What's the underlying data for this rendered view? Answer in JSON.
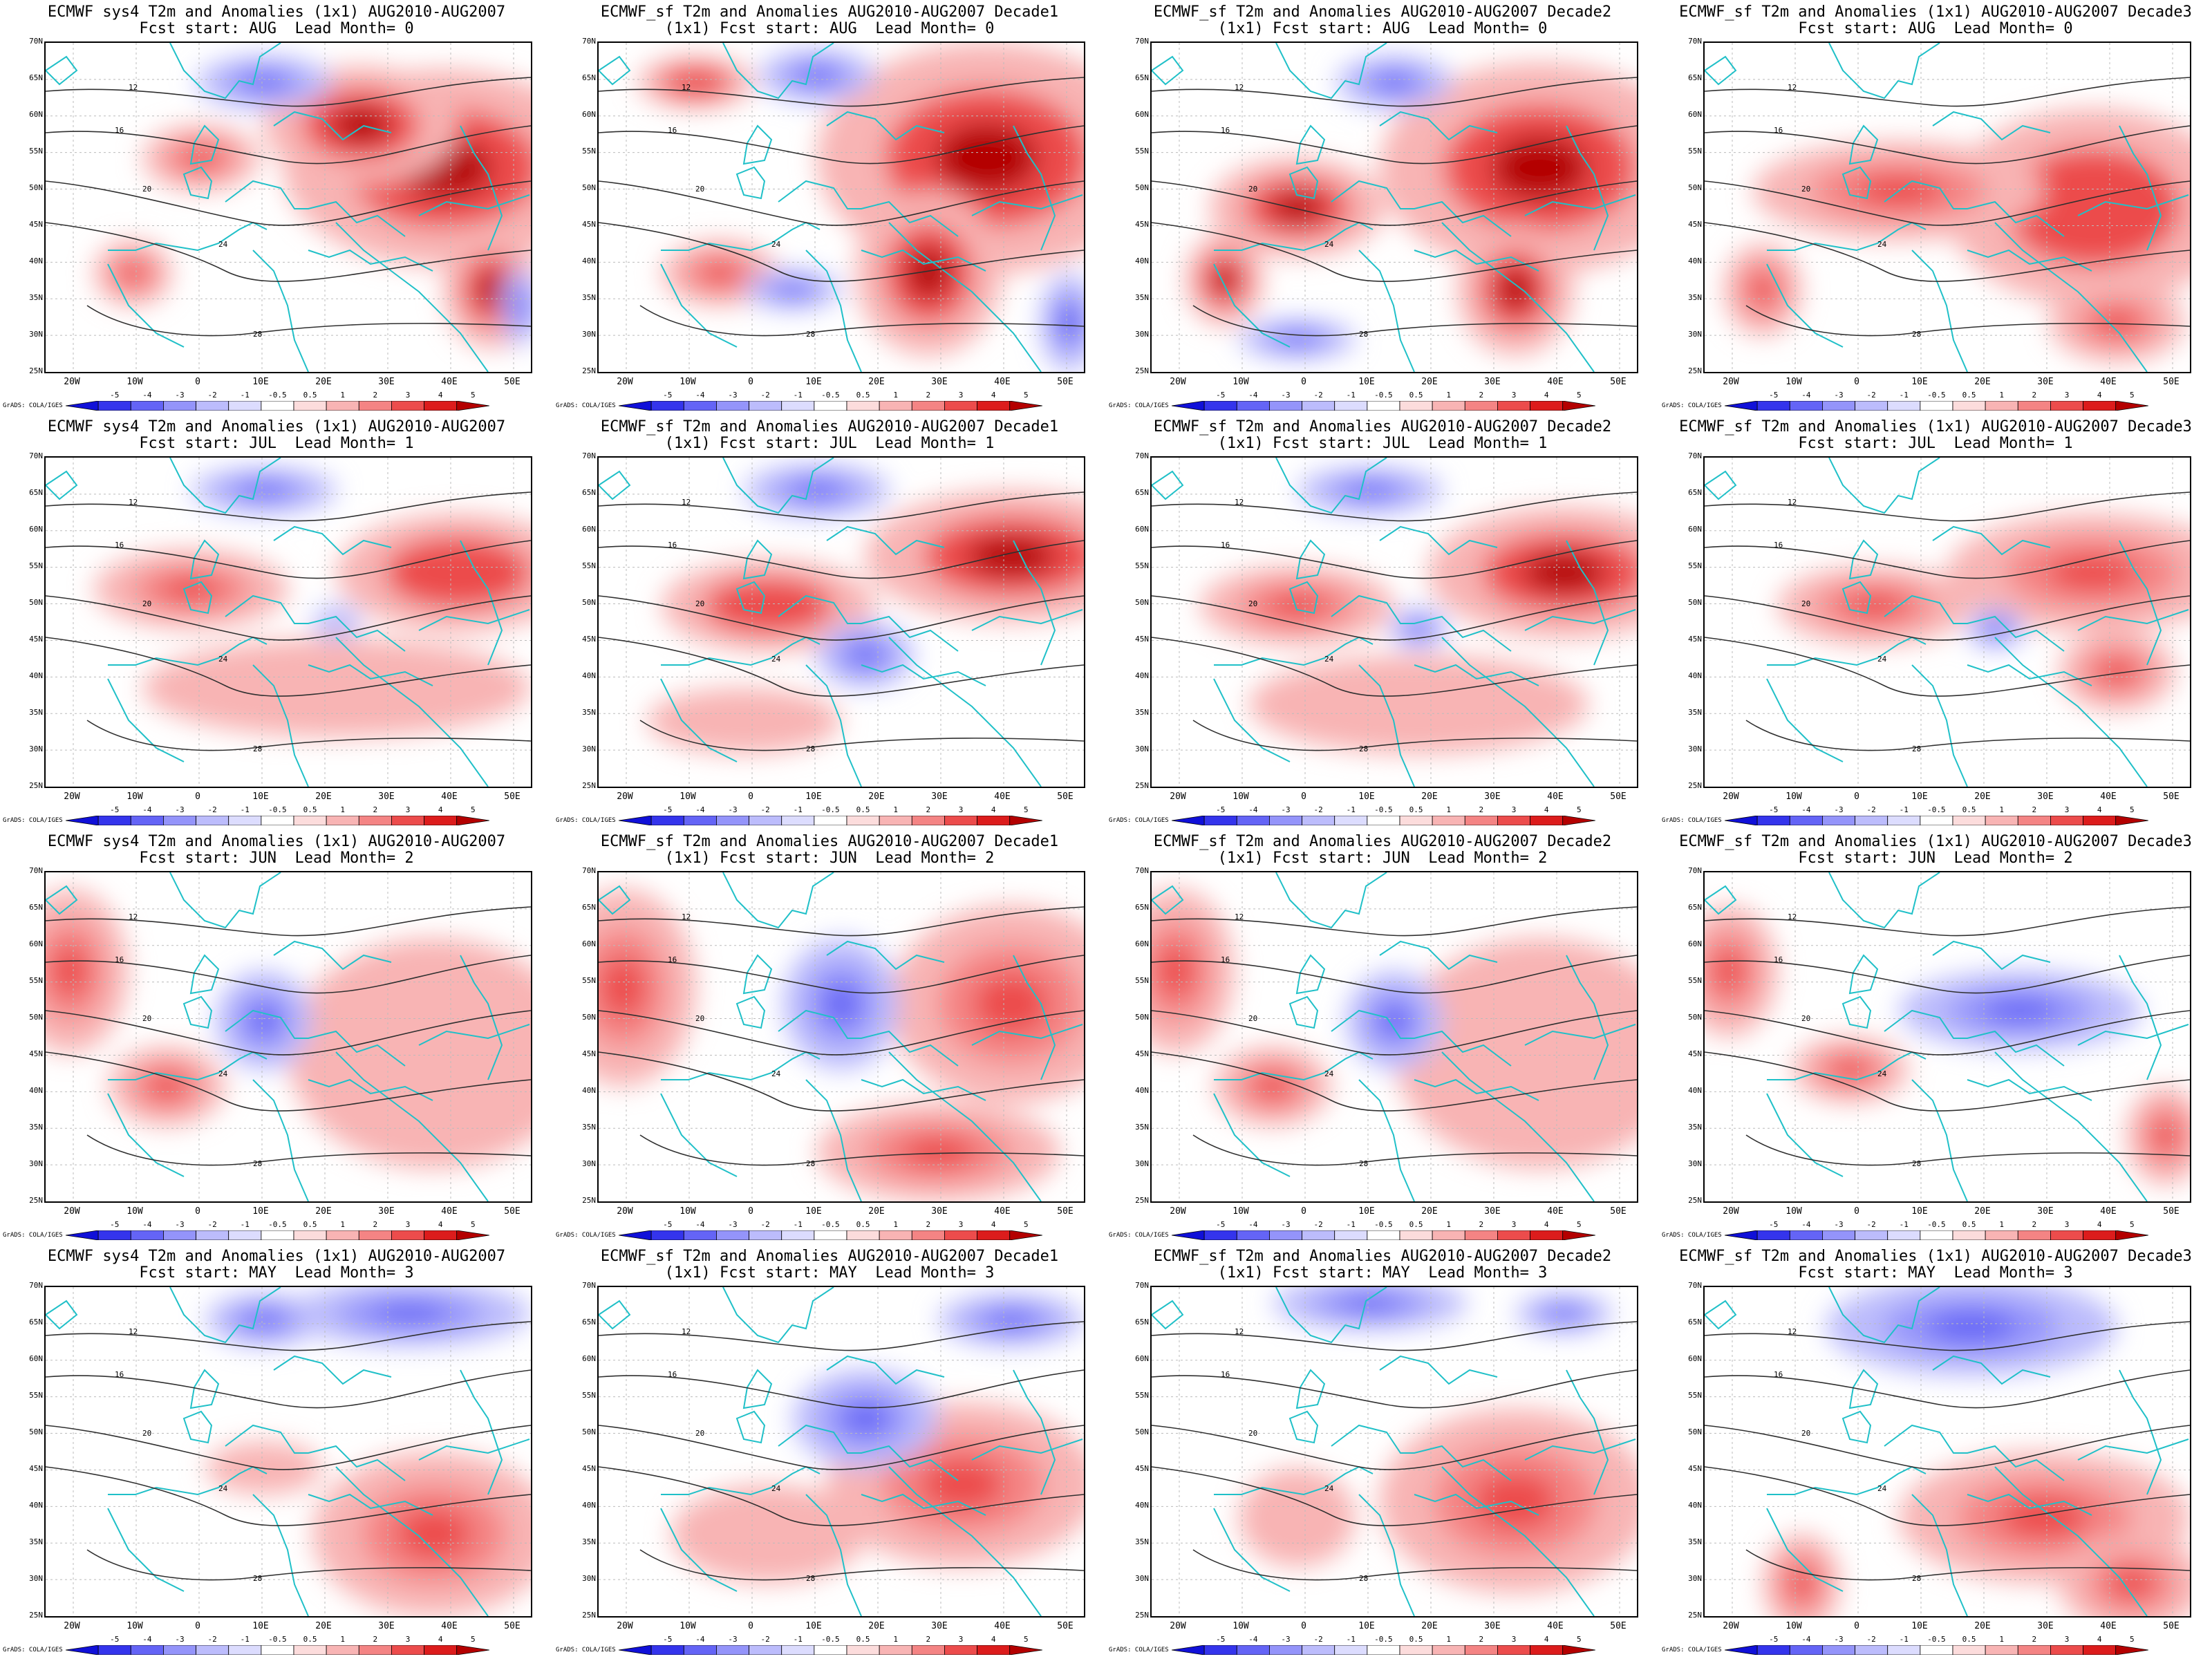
{
  "panels": [
    {
      "title1": "ECMWF sys4 T2m and Anomalies (1x1) AUG2010-AUG2007",
      "title2": "Fcst start: AUG  Lead Month= 0",
      "hot": [
        [
          0.82,
          0.38,
          0.33,
          0.3,
          1
        ],
        [
          0.65,
          0.25,
          0.2,
          0.18,
          0.9
        ],
        [
          0.32,
          0.35,
          0.12,
          0.1,
          0.6
        ],
        [
          0.92,
          0.75,
          0.1,
          0.18,
          0.9
        ],
        [
          0.18,
          0.7,
          0.08,
          0.1,
          0.5
        ]
      ],
      "cold": [
        [
          0.45,
          0.12,
          0.14,
          0.08,
          0.7
        ],
        [
          0.98,
          0.8,
          0.04,
          0.12,
          0.7
        ]
      ],
      "contours": [
        "12",
        "16",
        "20",
        "24",
        "28"
      ]
    },
    {
      "title1": "ECMWF_sf T2m and Anomalies AUG2010-AUG2007 Decade1",
      "title2": "(1x1) Fcst start: AUG  Lead Month= 0",
      "hot": [
        [
          0.8,
          0.35,
          0.35,
          0.35,
          1
        ],
        [
          0.68,
          0.7,
          0.15,
          0.25,
          1
        ],
        [
          0.2,
          0.12,
          0.12,
          0.08,
          0.8
        ],
        [
          0.25,
          0.7,
          0.12,
          0.1,
          0.6
        ]
      ],
      "cold": [
        [
          0.45,
          0.1,
          0.12,
          0.08,
          0.7
        ],
        [
          0.97,
          0.85,
          0.06,
          0.15,
          1
        ],
        [
          0.4,
          0.75,
          0.1,
          0.06,
          0.6
        ]
      ],
      "contours": [
        "12",
        "16",
        "20",
        "24",
        "28"
      ]
    },
    {
      "title1": "ECMWF_sf T2m and Anomalies AUG2010-AUG2007 Decade2",
      "title2": "(1x1) Fcst start: AUG  Lead Month= 0",
      "hot": [
        [
          0.8,
          0.38,
          0.33,
          0.32,
          1
        ],
        [
          0.3,
          0.5,
          0.18,
          0.15,
          0.9
        ],
        [
          0.75,
          0.75,
          0.12,
          0.2,
          1
        ],
        [
          0.15,
          0.72,
          0.08,
          0.14,
          0.9
        ]
      ],
      "cold": [
        [
          0.5,
          0.12,
          0.12,
          0.08,
          0.7
        ],
        [
          0.3,
          0.9,
          0.12,
          0.06,
          0.6
        ]
      ],
      "contours": [
        "12",
        "16",
        "20",
        "24",
        "28"
      ]
    },
    {
      "title1": "ECMWF_sf T2m and Anomalies (1x1) AUG2010-AUG2007 Decade3",
      "title2": "Fcst start: AUG  Lead Month= 0",
      "hot": [
        [
          0.8,
          0.5,
          0.3,
          0.3,
          0.8
        ],
        [
          0.4,
          0.45,
          0.3,
          0.15,
          0.6
        ],
        [
          0.85,
          0.85,
          0.14,
          0.12,
          0.7
        ],
        [
          0.12,
          0.75,
          0.08,
          0.14,
          0.6
        ]
      ],
      "cold": [],
      "contours": [
        "12",
        "16",
        "20",
        "24",
        "28"
      ]
    },
    {
      "title1": "ECMWF sys4 T2m and Anomalies (1x1) AUG2010-AUG2007",
      "title2": "Fcst start: JUL  Lead Month= 1",
      "hot": [
        [
          0.85,
          0.35,
          0.25,
          0.18,
          0.8
        ],
        [
          0.3,
          0.4,
          0.2,
          0.12,
          0.5
        ],
        [
          0.6,
          0.7,
          0.4,
          0.15,
          0.35
        ]
      ],
      "cold": [
        [
          0.45,
          0.1,
          0.15,
          0.07,
          0.5
        ],
        [
          0.6,
          0.5,
          0.05,
          0.05,
          0.4
        ]
      ],
      "contours": [
        "12",
        "16",
        "20",
        "24",
        "28"
      ]
    },
    {
      "title1": "ECMWF_sf T2m and Anomalies AUG2010-AUG2007 Decade1",
      "title2": "(1x1) Fcst start: JUL  Lead Month= 1",
      "hot": [
        [
          0.85,
          0.3,
          0.3,
          0.2,
          0.9
        ],
        [
          0.35,
          0.45,
          0.22,
          0.14,
          0.8
        ],
        [
          0.3,
          0.8,
          0.2,
          0.1,
          0.35
        ]
      ],
      "cold": [
        [
          0.45,
          0.1,
          0.15,
          0.08,
          0.7
        ],
        [
          0.55,
          0.6,
          0.1,
          0.1,
          0.6
        ]
      ],
      "contours": [
        "12",
        "16",
        "20",
        "24",
        "28"
      ]
    },
    {
      "title1": "ECMWF_sf T2m and Anomalies AUG2010-AUG2007 Decade2",
      "title2": "(1x1) Fcst start: JUL  Lead Month= 1",
      "hot": [
        [
          0.85,
          0.35,
          0.28,
          0.2,
          0.9
        ],
        [
          0.3,
          0.45,
          0.2,
          0.12,
          0.6
        ],
        [
          0.55,
          0.75,
          0.35,
          0.15,
          0.3
        ]
      ],
      "cold": [
        [
          0.45,
          0.1,
          0.15,
          0.07,
          0.7
        ],
        [
          0.55,
          0.52,
          0.06,
          0.06,
          0.6
        ]
      ],
      "contours": [
        "12",
        "16",
        "20",
        "24",
        "28"
      ]
    },
    {
      "title1": "ECMWF_sf T2m and Anomalies (1x1) AUG2010-AUG2007 Decade3",
      "title2": "Fcst start: JUL  Lead Month= 1",
      "hot": [
        [
          0.8,
          0.35,
          0.3,
          0.18,
          0.6
        ],
        [
          0.35,
          0.45,
          0.2,
          0.12,
          0.5
        ],
        [
          0.85,
          0.65,
          0.12,
          0.12,
          0.6
        ]
      ],
      "cold": [
        [
          0.6,
          0.52,
          0.06,
          0.06,
          0.5
        ]
      ],
      "contours": [
        "12",
        "16",
        "20",
        "24",
        "28"
      ]
    },
    {
      "title1": "ECMWF sys4 T2m and Anomalies (1x1) AUG2010-AUG2007",
      "title2": "Fcst start: JUN  Lead Month= 2",
      "hot": [
        [
          0.05,
          0.3,
          0.12,
          0.25,
          0.6
        ],
        [
          0.8,
          0.55,
          0.3,
          0.35,
          0.4
        ],
        [
          0.25,
          0.65,
          0.12,
          0.12,
          0.5
        ]
      ],
      "cold": [
        [
          0.45,
          0.45,
          0.1,
          0.15,
          0.6
        ]
      ],
      "contours": [
        "12",
        "16",
        "20",
        "24",
        "28"
      ]
    },
    {
      "title1": "ECMWF_sf T2m and Anomalies AUG2010-AUG2007 Decade1",
      "title2": "(1x1) Fcst start: JUN  Lead Month= 2",
      "hot": [
        [
          0.05,
          0.35,
          0.15,
          0.3,
          0.7
        ],
        [
          0.85,
          0.4,
          0.25,
          0.3,
          0.6
        ],
        [
          0.7,
          0.85,
          0.25,
          0.15,
          0.6
        ]
      ],
      "cold": [
        [
          0.5,
          0.4,
          0.12,
          0.2,
          0.7
        ]
      ],
      "contours": [
        "12",
        "16",
        "20",
        "24",
        "28"
      ]
    },
    {
      "title1": "ECMWF_sf T2m and Anomalies AUG2010-AUG2007 Decade2",
      "title2": "(1x1) Fcst start: JUN  Lead Month= 2",
      "hot": [
        [
          0.05,
          0.3,
          0.12,
          0.25,
          0.6
        ],
        [
          0.8,
          0.55,
          0.3,
          0.35,
          0.4
        ],
        [
          0.25,
          0.65,
          0.12,
          0.12,
          0.6
        ]
      ],
      "cold": [
        [
          0.5,
          0.45,
          0.1,
          0.15,
          0.6
        ]
      ],
      "contours": [
        "12",
        "16",
        "20",
        "24",
        "28"
      ]
    },
    {
      "title1": "ECMWF_sf T2m and Anomalies (1x1) AUG2010-AUG2007 Decade3",
      "title2": "Fcst start: JUN  Lead Month= 2",
      "hot": [
        [
          0.05,
          0.3,
          0.1,
          0.2,
          0.5
        ],
        [
          0.3,
          0.6,
          0.12,
          0.1,
          0.6
        ],
        [
          0.95,
          0.8,
          0.08,
          0.15,
          0.5
        ]
      ],
      "cold": [
        [
          0.65,
          0.42,
          0.25,
          0.12,
          0.7
        ]
      ],
      "contours": [
        "12",
        "16",
        "20",
        "24",
        "28"
      ]
    },
    {
      "title1": "ECMWF sys4 T2m and Anomalies (1x1) AUG2010-AUG2007",
      "title2": "Fcst start: MAY  Lead Month= 3",
      "hot": [
        [
          0.8,
          0.75,
          0.25,
          0.25,
          0.6
        ],
        [
          0.45,
          0.55,
          0.12,
          0.08,
          0.4
        ]
      ],
      "cold": [
        [
          0.75,
          0.08,
          0.25,
          0.1,
          0.8
        ],
        [
          0.45,
          0.1,
          0.12,
          0.08,
          0.5
        ]
      ],
      "contours": [
        "12",
        "16",
        "20",
        "24",
        "28"
      ]
    },
    {
      "title1": "ECMWF_sf T2m and Anomalies AUG2010-AUG2007 Decade1",
      "title2": "(1x1) Fcst start: MAY  Lead Month= 3",
      "hot": [
        [
          0.75,
          0.6,
          0.28,
          0.25,
          0.5
        ],
        [
          0.35,
          0.75,
          0.2,
          0.15,
          0.4
        ]
      ],
      "cold": [
        [
          0.85,
          0.1,
          0.15,
          0.08,
          0.6
        ],
        [
          0.55,
          0.4,
          0.15,
          0.15,
          0.5
        ]
      ],
      "contours": [
        "12",
        "16",
        "20",
        "24",
        "28"
      ]
    },
    {
      "title1": "ECMWF_sf T2m and Anomalies AUG2010-AUG2007 Decade2",
      "title2": "(1x1) Fcst start: MAY  Lead Month= 3",
      "hot": [
        [
          0.75,
          0.65,
          0.28,
          0.28,
          0.6
        ],
        [
          0.3,
          0.7,
          0.12,
          0.15,
          0.4
        ]
      ],
      "cold": [
        [
          0.45,
          0.05,
          0.2,
          0.08,
          0.5
        ],
        [
          0.85,
          0.08,
          0.1,
          0.06,
          0.5
        ]
      ],
      "contours": [
        "12",
        "16",
        "20",
        "24",
        "28"
      ]
    },
    {
      "title1": "ECMWF_sf T2m and Anomalies (1x1) AUG2010-AUG2007 Decade3",
      "title2": "Fcst start: MAY  Lead Month= 3",
      "hot": [
        [
          0.7,
          0.7,
          0.3,
          0.2,
          0.7
        ],
        [
          0.88,
          0.9,
          0.15,
          0.15,
          0.7
        ],
        [
          0.2,
          0.9,
          0.08,
          0.15,
          0.5
        ]
      ],
      "cold": [
        [
          0.55,
          0.12,
          0.3,
          0.15,
          0.8
        ]
      ],
      "contours": [
        "12",
        "16",
        "20",
        "24",
        "28"
      ]
    }
  ],
  "lat_labels": [
    "70N",
    "65N",
    "60N",
    "55N",
    "50N",
    "45N",
    "40N",
    "35N",
    "30N",
    "25N"
  ],
  "lon_labels": [
    "20W",
    "10W",
    "0",
    "10E",
    "20E",
    "30E",
    "40E",
    "50E"
  ],
  "colorbar_ticks": [
    "-5",
    "-4",
    "-3",
    "-2",
    "-1",
    "-0.5",
    "0.5",
    "1",
    "2",
    "3",
    "4",
    "5"
  ],
  "colorbar_colors": [
    "#1010d8",
    "#3434ec",
    "#6464f6",
    "#9494fa",
    "#bcbcfc",
    "#dcdcfe",
    "#ffffff",
    "#fcdcdc",
    "#f8b4b4",
    "#f48484",
    "#ec4c4c",
    "#dc1c1c",
    "#b40000"
  ],
  "credit": "GrADS: COLA/IGES",
  "colors": {
    "land_outline": "#20c0c8",
    "contour": "#303030"
  }
}
